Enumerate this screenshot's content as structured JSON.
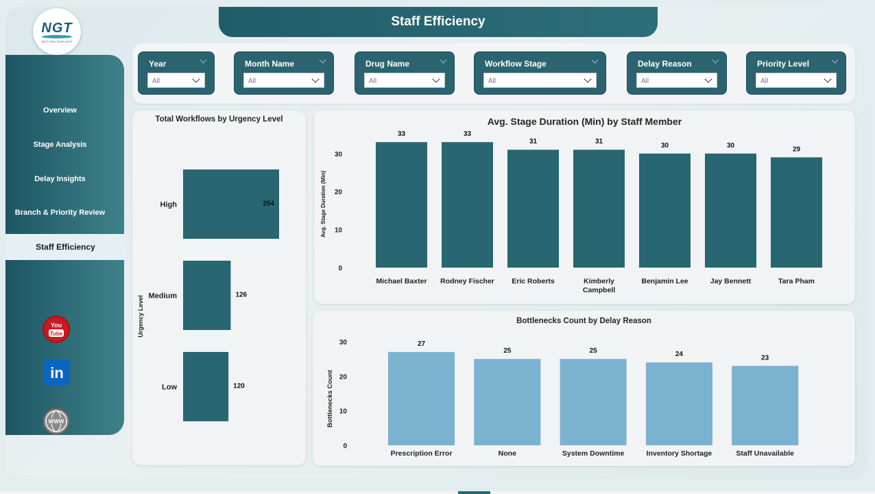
{
  "header": {
    "title": "Staff Efficiency"
  },
  "logo": {
    "text": "NGT",
    "subtext": "NEXT GEN TEMPLATES"
  },
  "sidebar": {
    "items": [
      {
        "label": "Overview"
      },
      {
        "label": "Stage Analysis"
      },
      {
        "label": "Delay Insights"
      },
      {
        "label": "Branch & Priority Review"
      },
      {
        "label": "Staff Efficiency",
        "active": true
      }
    ],
    "social": [
      {
        "icon": "youtube-icon",
        "text": "You Tube",
        "color": "#cc181e"
      },
      {
        "icon": "linkedin-icon",
        "text": "in",
        "color": "#0a66c2"
      },
      {
        "icon": "globe-icon",
        "text": "WWW",
        "color": "#6f6f6f"
      }
    ]
  },
  "filters": [
    {
      "label": "Year",
      "value": "All"
    },
    {
      "label": "Month Name",
      "value": "All"
    },
    {
      "label": "Drug Name",
      "value": "All"
    },
    {
      "label": "Workflow Stage",
      "value": "All"
    },
    {
      "label": "Delay Reason",
      "value": "All"
    },
    {
      "label": "Priority Level",
      "value": "All"
    }
  ],
  "colors": {
    "accent": "#2b6470",
    "bar_dark": "#286672",
    "bar_light": "#7bb2cf"
  },
  "chart_data": [
    {
      "type": "bar",
      "orientation": "horizontal",
      "title": "Total Workflows by Urgency Level",
      "ylabel": "Urgency Level",
      "categories": [
        "High",
        "Medium",
        "Low"
      ],
      "values": [
        254,
        126,
        120
      ],
      "grid": false
    },
    {
      "type": "bar",
      "title": "Avg. Stage Duration (Min) by Staff Member",
      "ylabel": "Avg. Stage Duration (Min)",
      "categories": [
        "Michael Baxter",
        "Rodney Fischer",
        "Eric Roberts",
        "Kimberly Campbell",
        "Benjamin Lee",
        "Jay Bennett",
        "Tara Pham"
      ],
      "values": [
        33,
        33,
        31,
        31,
        30,
        30,
        29
      ],
      "yticks": [
        0,
        10,
        20,
        30
      ],
      "ylim": [
        0,
        37
      ],
      "grid": false
    },
    {
      "type": "bar",
      "title": "Bottlenecks Count by Delay Reason",
      "ylabel": "Bottlenecks Count",
      "categories": [
        "Prescription Error",
        "None",
        "System Downtime",
        "Inventory Shortage",
        "Staff Unavailable"
      ],
      "values": [
        27,
        25,
        25,
        24,
        23
      ],
      "yticks": [
        0,
        10,
        20,
        30
      ],
      "ylim": [
        0,
        31
      ],
      "grid": false
    }
  ]
}
